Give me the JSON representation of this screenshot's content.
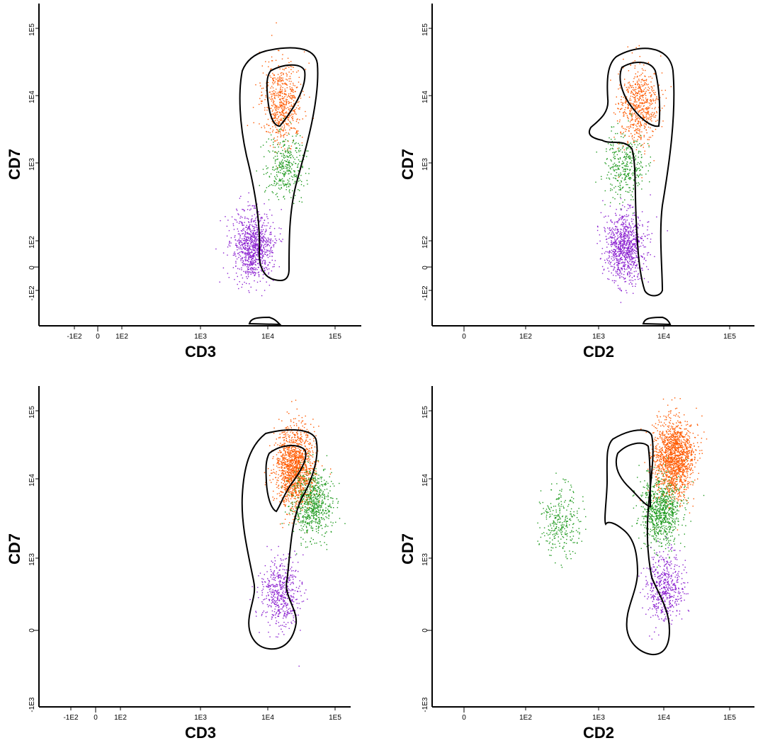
{
  "colors": {
    "orange": "#ff5a00",
    "green": "#1e9a1e",
    "purple": "#8a1fd0"
  },
  "chart_data": [
    {
      "type": "scatter",
      "xlabel": "CD3",
      "ylabel": "CD7",
      "x_tick_labels": [
        "-1E2",
        "0",
        "1E2",
        "1E3",
        "1E4",
        "1E5"
      ],
      "y_tick_labels": [
        "-1E2",
        "0",
        "1E2",
        "1E3",
        "1E4",
        "1E5"
      ],
      "x_scale": "biexponential",
      "y_scale": "biexponential",
      "series": [
        {
          "color": "orange",
          "clusters": [
            {
              "x": 16000,
              "y": 8000,
              "n": 600
            }
          ]
        },
        {
          "color": "green",
          "clusters": [
            {
              "x": 18000,
              "y": 900,
              "n": 350
            }
          ]
        },
        {
          "color": "purple",
          "clusters": [
            {
              "x": 6000,
              "y": 60,
              "n": 900
            }
          ]
        }
      ]
    },
    {
      "type": "scatter",
      "xlabel": "CD2",
      "ylabel": "CD7",
      "x_tick_labels": [
        "0",
        "1E2",
        "1E3",
        "1E4",
        "1E5"
      ],
      "y_tick_labels": [
        "-1E2",
        "0",
        "1E2",
        "1E3",
        "1E4",
        "1E5"
      ],
      "x_scale": "biexponential",
      "y_scale": "biexponential",
      "series": [
        {
          "color": "orange",
          "clusters": [
            {
              "x": 4000,
              "y": 7000,
              "n": 600
            }
          ]
        },
        {
          "color": "green",
          "clusters": [
            {
              "x": 2500,
              "y": 900,
              "n": 350
            }
          ]
        },
        {
          "color": "purple",
          "clusters": [
            {
              "x": 2500,
              "y": 60,
              "n": 900
            }
          ]
        }
      ]
    },
    {
      "type": "scatter",
      "xlabel": "CD3",
      "ylabel": "CD7",
      "x_tick_labels": [
        "-1E2",
        "0",
        "1E2",
        "1E3",
        "1E4",
        "1E5"
      ],
      "y_tick_labels": [
        "-1E3",
        "0",
        "1E3",
        "1E4",
        "1E5"
      ],
      "x_scale": "biexponential",
      "y_scale": "biexponential",
      "series": [
        {
          "color": "orange",
          "clusters": [
            {
              "x": 25000,
              "y": 15000,
              "n": 1400
            }
          ]
        },
        {
          "color": "green",
          "clusters": [
            {
              "x": 45000,
              "y": 5000,
              "n": 700
            }
          ]
        },
        {
          "color": "purple",
          "clusters": [
            {
              "x": 15000,
              "y": 100,
              "n": 500
            }
          ]
        }
      ]
    },
    {
      "type": "scatter",
      "xlabel": "CD2",
      "ylabel": "CD7",
      "x_tick_labels": [
        "0",
        "1E2",
        "1E3",
        "1E4",
        "1E5"
      ],
      "y_tick_labels": [
        "-1E3",
        "0",
        "1E3",
        "1E4",
        "1E5"
      ],
      "x_scale": "biexponential",
      "y_scale": "biexponential",
      "series": [
        {
          "color": "orange",
          "clusters": [
            {
              "x": 14000,
              "y": 20000,
              "n": 1500
            }
          ]
        },
        {
          "color": "green",
          "clusters": [
            {
              "x": 9000,
              "y": 4000,
              "n": 800
            },
            {
              "x": 300,
              "y": 3000,
              "n": 300
            }
          ]
        },
        {
          "color": "purple",
          "clusters": [
            {
              "x": 10000,
              "y": 150,
              "n": 500
            }
          ]
        }
      ]
    }
  ]
}
